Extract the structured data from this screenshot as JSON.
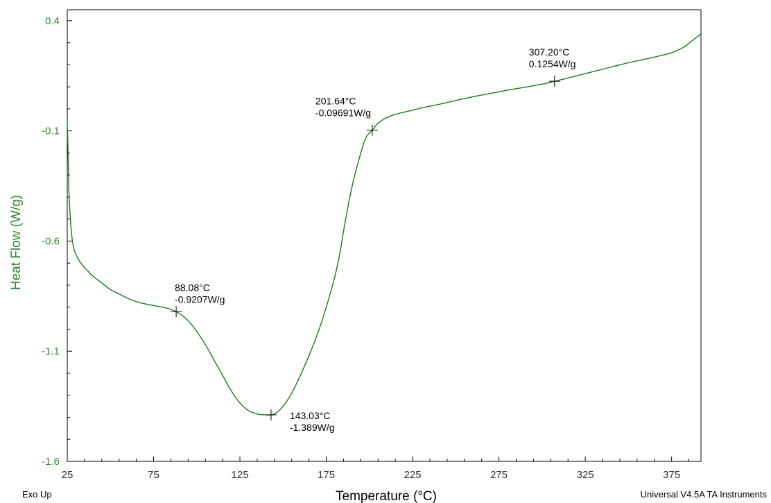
{
  "chart_data": {
    "type": "line",
    "title": "",
    "xlabel": "Temperature (°C)",
    "ylabel": "Heat Flow (W/g)",
    "xlim": [
      25,
      392
    ],
    "ylim": [
      -1.6,
      0.45
    ],
    "x_ticks": [
      25,
      75,
      125,
      175,
      225,
      275,
      325,
      375
    ],
    "x_tick_labels": [
      "25",
      "75",
      "125",
      "175",
      "225",
      "275",
      "325",
      "375"
    ],
    "y_ticks": [
      0.4,
      -0.1,
      -0.6,
      -1.1,
      -1.6
    ],
    "y_tick_labels": [
      "0.4",
      "-0.1",
      "-0.6",
      "-1.1",
      "-1.6"
    ],
    "grid": false,
    "legend": "none",
    "colors": {
      "curve": "#1a7a1a",
      "axis_text": "#2e8b2e",
      "frame": "#000000",
      "marker": "#000000"
    },
    "series": [
      {
        "x": [
          25,
          25.5,
          26,
          27,
          28,
          29,
          30,
          32,
          35,
          40,
          45,
          50,
          55,
          60,
          65,
          70,
          75,
          80,
          85,
          88.08,
          92,
          96,
          100,
          105,
          110,
          115,
          120,
          125,
          130,
          135,
          138,
          141,
          143.03,
          146,
          150,
          155,
          160,
          165,
          170,
          175,
          180,
          183,
          186,
          190,
          195,
          198,
          201.64,
          205,
          210,
          215,
          220,
          225,
          230,
          240,
          250,
          260,
          270,
          280,
          290,
          300,
          307.2,
          315,
          325,
          335,
          345,
          355,
          365,
          375,
          382,
          387,
          392
        ],
        "y": [
          -0.06,
          -0.2,
          -0.38,
          -0.52,
          -0.6,
          -0.64,
          -0.66,
          -0.69,
          -0.72,
          -0.76,
          -0.79,
          -0.82,
          -0.84,
          -0.86,
          -0.875,
          -0.885,
          -0.893,
          -0.9,
          -0.91,
          -0.9207,
          -0.94,
          -0.97,
          -1.01,
          -1.07,
          -1.14,
          -1.21,
          -1.28,
          -1.335,
          -1.37,
          -1.385,
          -1.388,
          -1.389,
          -1.389,
          -1.38,
          -1.35,
          -1.29,
          -1.21,
          -1.12,
          -1.02,
          -0.9,
          -0.76,
          -0.65,
          -0.51,
          -0.35,
          -0.2,
          -0.13,
          -0.09691,
          -0.065,
          -0.04,
          -0.025,
          -0.015,
          -0.006,
          0.004,
          0.02,
          0.038,
          0.055,
          0.07,
          0.085,
          0.098,
          0.112,
          0.1254,
          0.14,
          0.16,
          0.18,
          0.2,
          0.218,
          0.235,
          0.255,
          0.28,
          0.31,
          0.34
        ]
      }
    ],
    "annotations": [
      {
        "x": 88.08,
        "y": -0.9207,
        "line1": "88.08°C",
        "line2": "-0.9207W/g",
        "anchor": "above-right"
      },
      {
        "x": 143.03,
        "y": -1.389,
        "line1": "143.03°C",
        "line2": "-1.389W/g",
        "anchor": "below-right"
      },
      {
        "x": 201.64,
        "y": -0.09691,
        "line1": "201.64°C",
        "line2": "-0.09691W/g",
        "anchor": "above-left"
      },
      {
        "x": 307.2,
        "y": 0.1254,
        "line1": "307.20°C",
        "line2": "0.1254W/g",
        "anchor": "above-left"
      }
    ]
  },
  "footer": {
    "exo_up": "Exo Up",
    "credit": "Universal V4.5A TA Instruments"
  }
}
